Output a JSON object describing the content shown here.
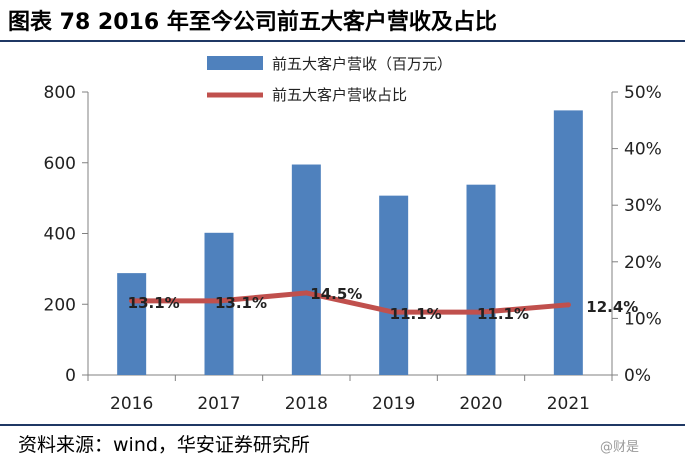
{
  "figure": {
    "title": "图表 78 2016 年至今公司前五大客户营收及占比",
    "source": "资料来源：wind，华安证券研究所",
    "watermark": "@财是"
  },
  "colors": {
    "bar": "#4f81bd",
    "line": "#c0504d",
    "axis": "#808080",
    "rule": "#1f3864"
  },
  "chart_data": {
    "type": "bar",
    "categories": [
      "2016",
      "2017",
      "2018",
      "2019",
      "2020",
      "2021"
    ],
    "series": [
      {
        "name": "前五大客户营收（百万元）",
        "type": "bar",
        "axis": "left",
        "values": [
          288,
          402,
          595,
          507,
          538,
          748
        ]
      },
      {
        "name": "前五大客户营收占比",
        "type": "line",
        "axis": "right",
        "values": [
          13.1,
          13.1,
          14.5,
          11.1,
          11.1,
          12.4
        ],
        "labels": [
          "13.1%",
          "13.1%",
          "14.5%",
          "11.1%",
          "11.1%",
          "12.4%"
        ]
      }
    ],
    "ylim": [
      0,
      800
    ],
    "yticks": [
      "0",
      "200",
      "400",
      "600",
      "800"
    ],
    "y2lim": [
      0,
      50
    ],
    "y2ticks": [
      "0%",
      "10%",
      "20%",
      "30%",
      "40%",
      "50%"
    ],
    "legend_position": "top",
    "grid": false,
    "xlabel": "",
    "ylabel": ""
  }
}
